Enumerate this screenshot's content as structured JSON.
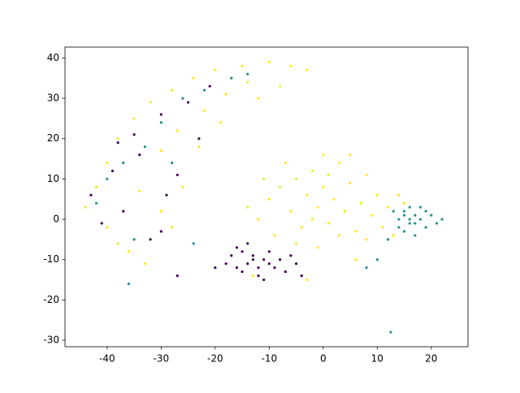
{
  "chart_data": {
    "type": "scatter",
    "xlim": [
      -47.8,
      26.8
    ],
    "ylim": [
      -31.6,
      42.7
    ],
    "xticks": [
      -40,
      -30,
      -20,
      -10,
      0,
      10,
      20
    ],
    "yticks": [
      -30,
      -20,
      -10,
      0,
      10,
      20,
      30,
      40
    ],
    "series": [
      {
        "color": "#fde725",
        "x": [
          -44,
          -42,
          -40,
          -38,
          -35,
          -32,
          -28,
          -24,
          -20,
          -15,
          -10,
          -6,
          -3,
          -40,
          -36,
          -33,
          -30,
          -27,
          -22,
          -18,
          -14,
          -34,
          -30,
          -26,
          -38,
          -23,
          -19,
          -12,
          -8,
          -28,
          -10,
          -8,
          -6,
          -5,
          -4,
          -3,
          -2,
          -1,
          0,
          1,
          2,
          3,
          4,
          5,
          6,
          7,
          8,
          9,
          10,
          11,
          -12,
          -14,
          -9,
          -7,
          0,
          5,
          12,
          14,
          -2,
          3,
          -11,
          8,
          -5,
          1,
          -1,
          13,
          15,
          -13,
          -3,
          6
        ],
        "y": [
          3,
          8,
          14,
          20,
          25,
          29,
          32,
          35,
          37,
          38,
          39,
          38,
          37,
          -2,
          -8,
          -11,
          17,
          22,
          27,
          31,
          34,
          7,
          2,
          8,
          -6,
          18,
          24,
          30,
          33,
          -2,
          5,
          8,
          2,
          10,
          -2,
          6,
          12,
          3,
          8,
          -1,
          5,
          14,
          2,
          9,
          -3,
          4,
          11,
          1,
          6,
          -2,
          0,
          3,
          -4,
          14,
          16,
          16,
          3,
          6,
          0,
          -4,
          10,
          -5,
          -6,
          11,
          -7,
          -4,
          4,
          -14,
          -15,
          -10
        ]
      },
      {
        "color": "#440154",
        "x": [
          -15,
          -14,
          -13,
          -12,
          -11,
          -16,
          -17,
          -10,
          -9,
          -14,
          -12,
          -8,
          -6,
          -7,
          -11,
          -18,
          -13,
          -15,
          -10,
          -4,
          -16,
          -5,
          -20,
          -43,
          -41,
          -39,
          -37,
          -35,
          -32,
          -30,
          -27,
          -25,
          -23,
          -21,
          -30,
          -27,
          -38,
          -34,
          -29
        ],
        "y": [
          -8,
          -11,
          -9,
          -12,
          -10,
          -12,
          -9,
          -8,
          -12,
          -6,
          -14,
          -10,
          -9,
          -13,
          -15,
          -11,
          -10,
          -13,
          -11,
          -14,
          -7,
          -11,
          -12,
          6,
          -1,
          12,
          2,
          21,
          -5,
          26,
          11,
          29,
          20,
          33,
          -3,
          -14,
          19,
          16,
          6
        ]
      },
      {
        "color": "#21918c",
        "x": [
          14,
          15,
          16,
          17,
          18,
          19,
          16,
          15,
          17,
          18,
          20,
          21,
          13,
          14,
          16,
          17,
          15,
          19,
          12,
          22,
          10,
          8,
          -42,
          -40,
          -37,
          -35,
          -33,
          -30,
          -26,
          -22,
          -17,
          -14,
          -36,
          -28,
          -24,
          12.5
        ],
        "y": [
          0,
          2,
          -1,
          1,
          0,
          -2,
          3,
          -3,
          -4,
          3,
          1,
          -1,
          2,
          -2,
          0,
          -1,
          1,
          2,
          -5,
          0,
          -10,
          -12,
          4,
          10,
          14,
          -5,
          18,
          24,
          30,
          32,
          35,
          36,
          -16,
          14,
          -6,
          -28
        ]
      }
    ]
  }
}
